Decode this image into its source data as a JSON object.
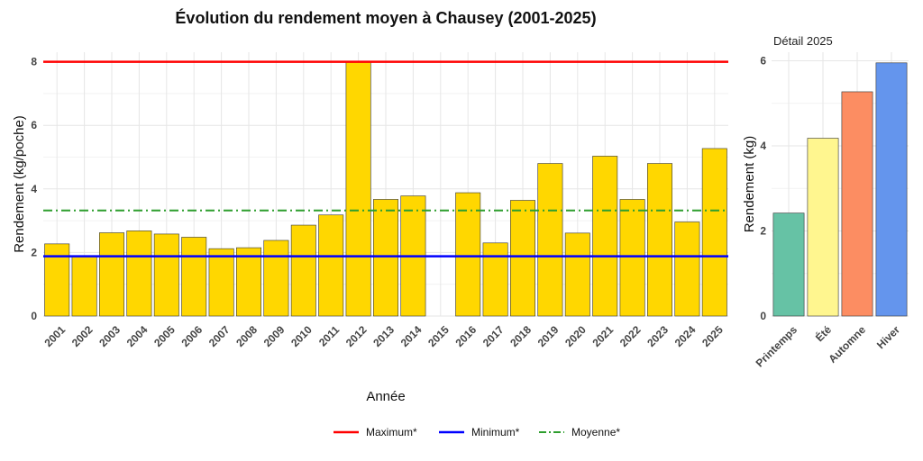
{
  "chart_data": [
    {
      "type": "bar",
      "title": "Évolution du rendement moyen à Chausey (2001-2025)",
      "xlabel": "Année",
      "ylabel": "Rendement (kg/poche)",
      "ylim": [
        0,
        8.3
      ],
      "yticks": [
        0,
        2,
        4,
        6,
        8
      ],
      "grid": true,
      "bar_color": "#FFD700",
      "categories": [
        "2001",
        "2002",
        "2003",
        "2004",
        "2005",
        "2006",
        "2007",
        "2008",
        "2009",
        "2010",
        "2011",
        "2012",
        "2013",
        "2014",
        "2015",
        "2016",
        "2017",
        "2018",
        "2019",
        "2020",
        "2021",
        "2022",
        "2023",
        "2024",
        "2025"
      ],
      "values": [
        2.27,
        1.88,
        2.62,
        2.68,
        2.58,
        2.48,
        2.12,
        2.15,
        2.38,
        2.86,
        3.18,
        8.0,
        3.67,
        3.78,
        null,
        3.88,
        2.3,
        3.64,
        4.8,
        2.61,
        5.03,
        3.67,
        4.8,
        2.96,
        5.27
      ],
      "reference_lines": [
        {
          "name": "Maximum*",
          "value": 8.0,
          "color": "#FF0000",
          "style": "solid"
        },
        {
          "name": "Minimum*",
          "value": 1.88,
          "color": "#0000FF",
          "style": "solid"
        },
        {
          "name": "Moyenne*",
          "value": 3.32,
          "color": "#2E9E2E",
          "style": "dashdot"
        }
      ],
      "legend_position": "bottom"
    },
    {
      "type": "bar",
      "title": "Détail 2025",
      "xlabel": "",
      "ylabel": "Rendement (kg)",
      "ylim": [
        0,
        6.2
      ],
      "yticks": [
        0,
        2,
        4,
        6
      ],
      "grid": true,
      "categories": [
        "Printemps",
        "Été",
        "Automne",
        "Hiver"
      ],
      "values": [
        2.42,
        4.18,
        5.27,
        5.95
      ],
      "colors": [
        "#66C2A5",
        "#FFF68F",
        "#FC8D62",
        "#6495ED"
      ]
    }
  ]
}
